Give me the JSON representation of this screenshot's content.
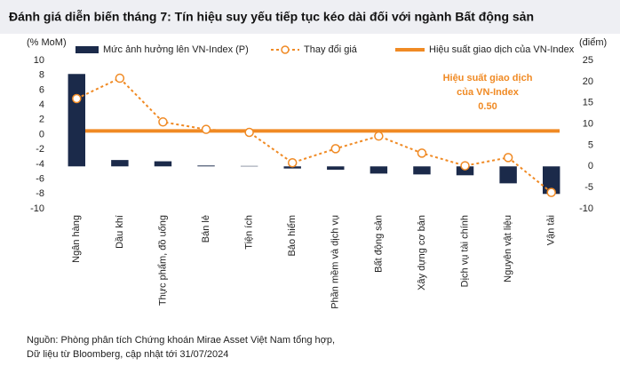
{
  "chart_data": {
    "type": "combo",
    "title": "Đánh giá diễn biến tháng 7: Tín hiệu suy yếu tiếp tục kéo dài đối với ngành Bất động sản",
    "y_label": "(% MoM)",
    "y2_label": "(điểm)",
    "categories": [
      "Ngân hàng",
      "Dầu khí",
      "Thực phẩm, đồ uống",
      "Bán lẻ",
      "Tiện ích",
      "Bảo hiểm",
      "Phần mềm và dịch vụ",
      "Bất động sản",
      "Xây dựng cơ bản",
      "Dịch vụ tài chính",
      "Nguyên vật liệu",
      "Vận tải"
    ],
    "series": [
      {
        "name": "Mức ảnh hưởng lên VN-Index (P)",
        "type": "bar",
        "axis": "y2",
        "color": "#1b2a4a",
        "values": [
          21.8,
          1.5,
          1.2,
          0.2,
          0.1,
          -0.5,
          -0.8,
          -1.7,
          -1.9,
          -2.1,
          -4.0,
          -6.5
        ]
      },
      {
        "name": "Thay đổi giá",
        "type": "line",
        "axis": "y",
        "color": "#f08a24",
        "values": [
          4.85,
          7.6,
          1.7,
          0.7,
          0.3,
          -3.8,
          -1.9,
          -0.2,
          -2.5,
          -4.2,
          -3.1,
          -7.8
        ]
      }
    ],
    "reference": {
      "name": "Hiệu suất giao dịch của VN-Index",
      "value": 0.5,
      "value_label": "0.50",
      "color": "#f08a24",
      "annotation": [
        "Hiệu suất giao dịch",
        "của VN-Index"
      ]
    },
    "ylim": [
      -10,
      10
    ],
    "yticks": [
      -10,
      -8,
      -6,
      -4,
      -2,
      0,
      2,
      4,
      6,
      8,
      10
    ],
    "y2lim": [
      -10,
      25
    ],
    "y2ticks": [
      -10,
      -5,
      0,
      5,
      10,
      15,
      20,
      25
    ],
    "footnote": [
      "Nguồn: Phòng phân tích Chứng khoán Mirae Asset Việt Nam tổng hợp,",
      "Dữ liệu từ Bloomberg, cập nhật tới 31/07/2024"
    ]
  }
}
